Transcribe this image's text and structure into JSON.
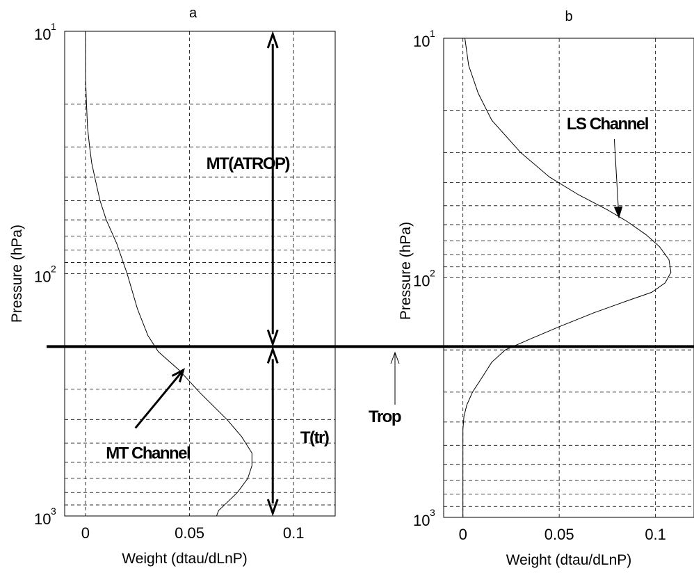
{
  "chart_data": [
    {
      "type": "line",
      "panel_label": "a",
      "xlabel": "Weight (dtau/dLnP)",
      "ylabel": "Pressure (hPa)",
      "xlim": [
        -0.01,
        0.12
      ],
      "ylim": [
        10,
        1000
      ],
      "y_scale": "log",
      "y_reversed": true,
      "grid": true,
      "xticks": [
        0,
        0.05,
        0.1
      ],
      "xtick_labels": [
        "0",
        "0.05",
        "0.1"
      ],
      "yticks": [
        10,
        100,
        1000
      ],
      "ytick_bases": [
        "10",
        "10",
        "10"
      ],
      "ytick_exponents": [
        "1",
        "2",
        "3"
      ],
      "series": [
        {
          "x": [
            0.0,
            0.0,
            0.0005,
            0.001,
            0.002,
            0.003,
            0.005,
            0.007,
            0.01,
            0.015,
            0.02,
            0.025,
            0.03,
            0.035,
            0.045,
            0.055,
            0.068,
            0.075,
            0.08,
            0.08,
            0.078,
            0.073,
            0.068,
            0.064,
            0.063
          ],
          "y": [
            10,
            15,
            20,
            25,
            30,
            35,
            42,
            50,
            60,
            75,
            100,
            140,
            180,
            210,
            250,
            310,
            400,
            470,
            550,
            620,
            700,
            800,
            880,
            950,
            1000
          ]
        }
      ],
      "annotations": [
        {
          "text": "MT(ATROP)",
          "x": 0.078,
          "y": 37
        },
        {
          "text": "T(tr)",
          "x": 0.11,
          "y": 500
        },
        {
          "text": "MT Channel",
          "x": 0.03,
          "y": 580,
          "arrow_to": [
            0.047,
            250
          ]
        }
      ],
      "tropopause_hpa": 200,
      "arrows": [
        {
          "x": 0.09,
          "from": 10,
          "to": 200
        },
        {
          "x": 0.09,
          "from": 200,
          "to": 1000
        }
      ]
    },
    {
      "type": "line",
      "panel_label": "b",
      "xlabel": "Weight (dtau/dLnP)",
      "ylabel": "Pressure (hPa)",
      "xlim": [
        -0.01,
        0.12
      ],
      "ylim": [
        10,
        1000
      ],
      "y_scale": "log",
      "y_reversed": true,
      "grid": true,
      "xticks": [
        0,
        0.05,
        0.1
      ],
      "xtick_labels": [
        "0",
        "0.05",
        "0.1"
      ],
      "yticks": [
        10,
        100,
        1000
      ],
      "ytick_bases": [
        "10",
        "10",
        "10"
      ],
      "ytick_exponents": [
        "1",
        "2",
        "3"
      ],
      "series": [
        {
          "x": [
            0.001,
            0.003,
            0.008,
            0.015,
            0.03,
            0.045,
            0.06,
            0.075,
            0.085,
            0.095,
            0.102,
            0.107,
            0.108,
            0.105,
            0.098,
            0.085,
            0.068,
            0.05,
            0.035,
            0.022,
            0.015,
            0.01,
            0.005,
            0.002,
            0.0005,
            0.0,
            0.0
          ],
          "y": [
            10,
            13,
            17,
            22,
            30,
            38,
            45,
            52,
            58,
            66,
            74,
            84,
            95,
            105,
            115,
            125,
            140,
            160,
            180,
            200,
            225,
            260,
            300,
            340,
            380,
            430,
            1000
          ]
        }
      ],
      "annotations": [
        {
          "text": "LS Channel",
          "x": 0.075,
          "y": 24,
          "arrow_to": [
            0.081,
            56
          ]
        },
        {
          "text": "Trop",
          "x": -0.03,
          "y": 280,
          "arrow_to": [
            -0.03,
            200
          ]
        }
      ],
      "tropopause_hpa": 200
    }
  ],
  "labels": {
    "trop": "Trop"
  }
}
